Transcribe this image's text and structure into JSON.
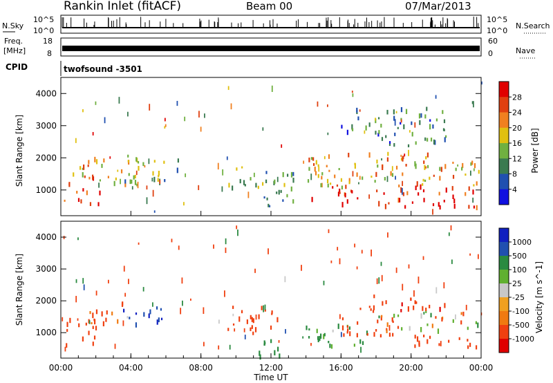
{
  "header": {
    "station": "Rankin Inlet (fitACF)",
    "beam": "Beam 00",
    "date": "07/Mar/2013"
  },
  "strips": {
    "nsky_label": "N.Sky",
    "nsky_ticks": [
      "10^5",
      "10^0"
    ],
    "nsearch_label": "N.Search",
    "nsearch_ticks": [
      "10^5",
      "10^0"
    ],
    "freq_label_1": "Freq.",
    "freq_label_2": "[MHz]",
    "freq_ticks": [
      "18",
      "8"
    ],
    "nave_label": "Nave",
    "nave_ticks": [
      "60",
      "0"
    ],
    "cpid_label": "CPID",
    "cpid_value": "twofsound  -3501"
  },
  "x_axis": {
    "label": "Time UT",
    "ticks": [
      "00:00",
      "04:00",
      "08:00",
      "12:00",
      "16:00",
      "20:00",
      "00:00"
    ]
  },
  "colors": {
    "power_scale": [
      "#1010e0",
      "#2050b0",
      "#3a7a50",
      "#70b040",
      "#e0c010",
      "#f08020",
      "#e04010",
      "#e00000"
    ],
    "velocity_scale": [
      "#e00000",
      "#f04010",
      "#f07a10",
      "#f0a020",
      "#c8c8c8",
      "#60b030",
      "#2a8a40",
      "#2050b0",
      "#1020c0"
    ]
  },
  "chart_data": [
    {
      "type": "heatmap",
      "panel": "power",
      "ylabel": "Slant Range [km]",
      "xlabel": "",
      "yticks": [
        "1000",
        "2000",
        "3000",
        "4000"
      ],
      "ylim": [
        200,
        4500
      ],
      "xlim_hours": [
        0,
        24
      ],
      "colorbar_label": "Power [dB]",
      "colorbar_ticks": [
        "4",
        "8",
        "12",
        "16",
        "20",
        "24",
        "28"
      ],
      "colorbar_range": [
        0,
        30
      ],
      "regions": [
        {
          "x": [
            0,
            2.2
          ],
          "y": [
            600,
            1500
          ],
          "value": 27
        },
        {
          "x": [
            0.3,
            2.5
          ],
          "y": [
            1500,
            2100
          ],
          "value": 18
        },
        {
          "x": [
            2.2,
            4.5
          ],
          "y": [
            1200,
            2200
          ],
          "value": 16
        },
        {
          "x": [
            3.5,
            6
          ],
          "y": [
            1300,
            2000
          ],
          "value": 12
        },
        {
          "x": [
            6.2,
            6.8
          ],
          "y": [
            1500,
            2000
          ],
          "value": 6
        },
        {
          "x": [
            9.5,
            11.5
          ],
          "y": [
            1100,
            1800
          ],
          "value": 14
        },
        {
          "x": [
            11.5,
            13.5
          ],
          "y": [
            500,
            1800
          ],
          "value": 10
        },
        {
          "x": [
            14,
            17
          ],
          "y": [
            600,
            1200
          ],
          "value": 25
        },
        {
          "x": [
            14,
            24
          ],
          "y": [
            1100,
            2200
          ],
          "value": 19
        },
        {
          "x": [
            18,
            24
          ],
          "y": [
            500,
            1200
          ],
          "value": 26
        },
        {
          "x": [
            16,
            22
          ],
          "y": [
            2400,
            3600
          ],
          "value": 9
        }
      ]
    },
    {
      "type": "heatmap",
      "panel": "velocity",
      "ylabel": "Slant Range [km]",
      "xlabel": "Time UT",
      "yticks": [
        "1000",
        "2000",
        "3000",
        "4000"
      ],
      "ylim": [
        200,
        4500
      ],
      "xlim_hours": [
        0,
        24
      ],
      "colorbar_label": "Velocity [m s^-1]",
      "colorbar_ticks": [
        "1000",
        "500",
        "100",
        "25",
        "-25",
        "-100",
        "-500",
        "-1000"
      ],
      "regions": [
        {
          "x": [
            0,
            2.2
          ],
          "y": [
            600,
            1500
          ],
          "value": -300
        },
        {
          "x": [
            1.5,
            3.5
          ],
          "y": [
            1300,
            2100
          ],
          "value": -200
        },
        {
          "x": [
            3.5,
            5.8
          ],
          "y": [
            1200,
            1900
          ],
          "value": 800
        },
        {
          "x": [
            9.5,
            12.5
          ],
          "y": [
            1000,
            1900
          ],
          "value": -300
        },
        {
          "x": [
            11,
            13
          ],
          "y": [
            300,
            900
          ],
          "value": 200
        },
        {
          "x": [
            13.5,
            17.5
          ],
          "y": [
            600,
            1300
          ],
          "value": 150
        },
        {
          "x": [
            16,
            19
          ],
          "y": [
            900,
            1900
          ],
          "value": -250
        },
        {
          "x": [
            18,
            24
          ],
          "y": [
            1100,
            1700
          ],
          "value": 0
        },
        {
          "x": [
            17.5,
            22
          ],
          "y": [
            1700,
            2200
          ],
          "value": -400
        },
        {
          "x": [
            20,
            24
          ],
          "y": [
            500,
            1000
          ],
          "value": -250
        }
      ]
    }
  ]
}
